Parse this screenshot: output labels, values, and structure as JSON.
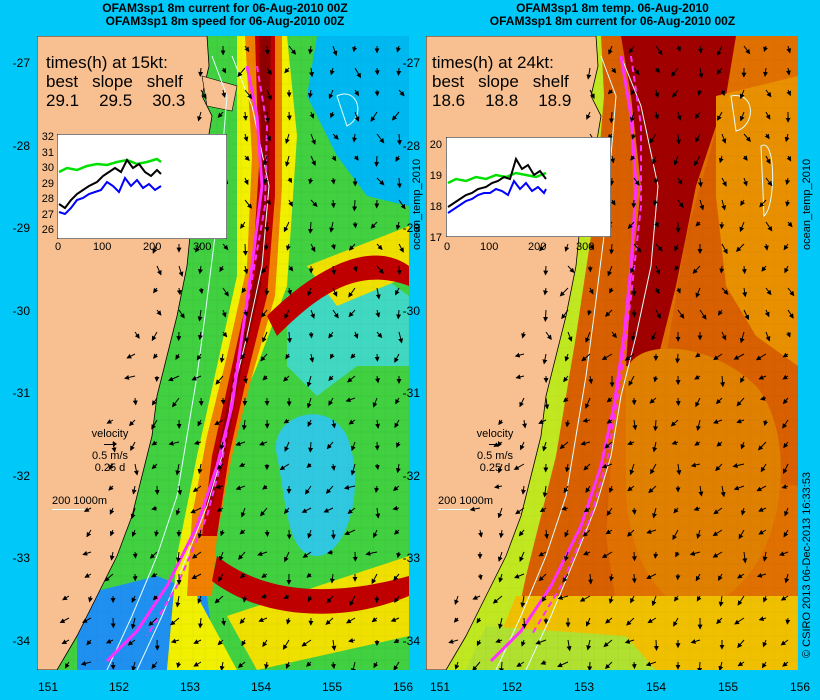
{
  "panels": [
    {
      "id": "speed",
      "title_line1": "OFAM3sp1 8m current for 06-Aug-2010 00Z",
      "title_line2": "OFAM3sp1 8m speed for 06-Aug-2010 00Z",
      "times_header": "times(h) at 15kt:",
      "times_labels": [
        "best",
        "slope",
        "shelf"
      ],
      "times_values": [
        "29.1",
        "29.5",
        "30.3"
      ],
      "inset_y_ticks": [
        "32",
        "31",
        "30",
        "29",
        "28",
        "27",
        "26"
      ],
      "inset_x_ticks": [
        "0",
        "100",
        "200",
        "300"
      ],
      "side_label": "ocean_temp_2010"
    },
    {
      "id": "temp",
      "title_line1": "OFAM3sp1 8m temp. 06-Aug-2010",
      "title_line2": "OFAM3sp1 8m current for 06-Aug-2010 00Z",
      "times_header": "times(h) at 24kt:",
      "times_labels": [
        "best",
        "slope",
        "shelf"
      ],
      "times_values": [
        "18.6",
        "18.8",
        "18.9"
      ],
      "inset_y_ticks": [
        "20",
        "19",
        "18",
        "17"
      ],
      "inset_x_ticks": [
        "0",
        "100",
        "200",
        "300"
      ],
      "side_label": "ocean_temp_2010"
    }
  ],
  "y_axis_ticks": [
    "-27",
    "-28",
    "-29",
    "-30",
    "-31",
    "-32",
    "-33",
    "-34"
  ],
  "x_axis_ticks": [
    "151",
    "152",
    "153",
    "154",
    "155",
    "156"
  ],
  "velocity_legend": {
    "label": "velocity",
    "speed": "0.5 m/s",
    "time": "0.25 d"
  },
  "depth_legend": {
    "text": "200  1000m"
  },
  "copyright": "© CSIRO 2013   06-Dec-2013 16:33:53",
  "colors": {
    "background": "#00c8f8",
    "land": "#f8c090",
    "route": "#ff30ff",
    "inset_series": [
      "#000000",
      "#0000ff",
      "#00e000"
    ]
  }
}
